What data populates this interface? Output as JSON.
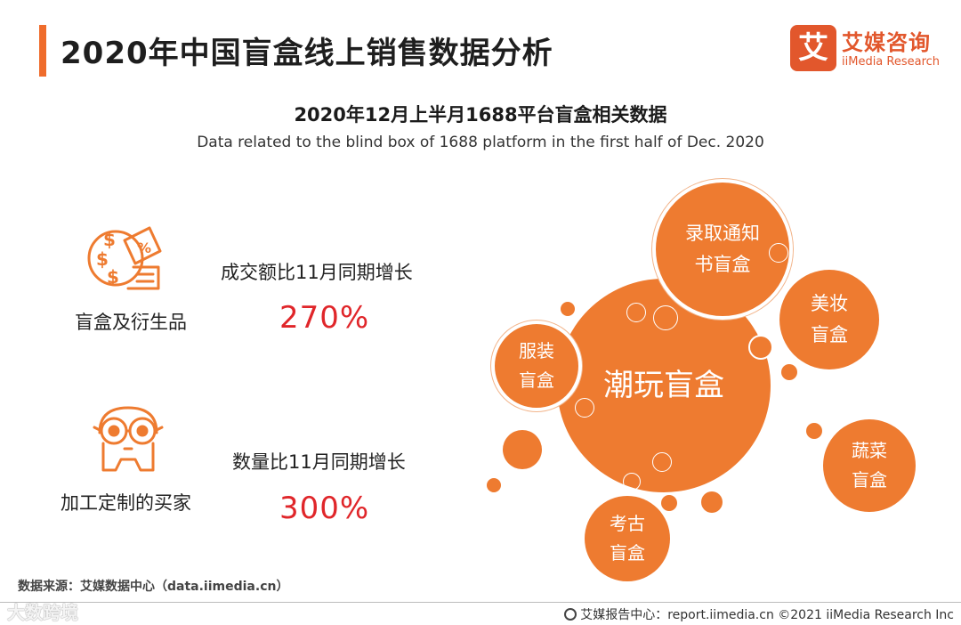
{
  "header": {
    "title": "2020年中国盲盒线上销售数据分析",
    "brand_logo_char": "艾",
    "brand_name_cn": "艾媒咨询",
    "brand_name_en": "iiMedia Research",
    "accent_color": "#ef6c2c"
  },
  "subtitle": {
    "cn": "2020年12月上半月1688平台盲盒相关数据",
    "en": "Data related to the blind box of 1688 platform in the first half of Dec. 2020"
  },
  "items": [
    {
      "icon": "money-percent-icon",
      "label": "盲盒及衍生品",
      "metric_label": "成交额比11月同期增长",
      "metric_value": "270%"
    },
    {
      "icon": "glasses-face-icon",
      "label": "加工定制的买家",
      "metric_label": "数量比11月同期增长",
      "metric_value": "300%"
    }
  ],
  "bubbles": [
    {
      "key": "chaowan",
      "lines": [
        "潮玩盲盒"
      ]
    },
    {
      "key": "luqu",
      "lines": [
        "录取通知",
        "书盲盒"
      ]
    },
    {
      "key": "meizhuang",
      "lines": [
        "美妆",
        "盲盒"
      ]
    },
    {
      "key": "fuzhuang",
      "lines": [
        "服装",
        "盲盒"
      ]
    },
    {
      "key": "shucai",
      "lines": [
        "蔬菜",
        "盲盒"
      ]
    },
    {
      "key": "kaogu",
      "lines": [
        "考古",
        "盲盒"
      ]
    }
  ],
  "source": "数据来源：艾媒数据中心（data.iimedia.cn）",
  "watermark": "大数跨境",
  "footer": "艾媒报告中心：report.iimedia.cn  ©2021  iiMedia Research  Inc",
  "colors": {
    "bubble": "#ee7b30",
    "metric_value": "#e0262a",
    "logo": "#e2572c"
  }
}
